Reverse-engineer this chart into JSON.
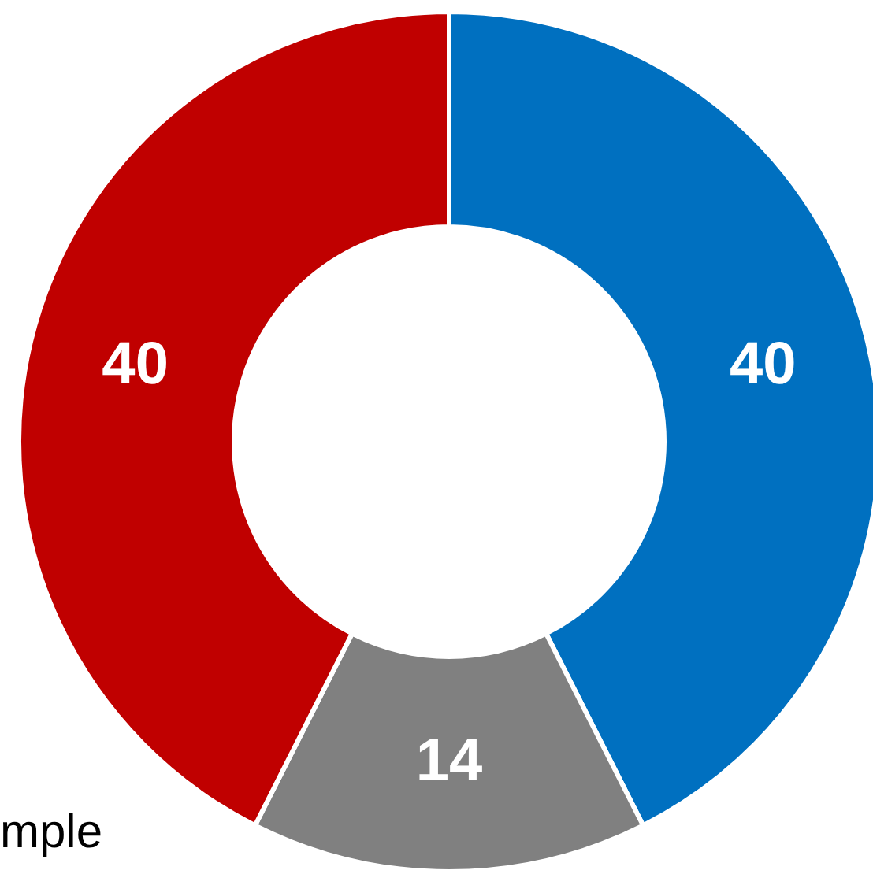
{
  "chart_data": {
    "type": "donut",
    "categories": [
      null,
      null,
      null
    ],
    "values": [
      40,
      14,
      40
    ],
    "colors": [
      "#0070c0",
      "#808080",
      "#c00000"
    ],
    "data_labels": true,
    "legend": false,
    "annotations": [
      "mple"
    ]
  }
}
